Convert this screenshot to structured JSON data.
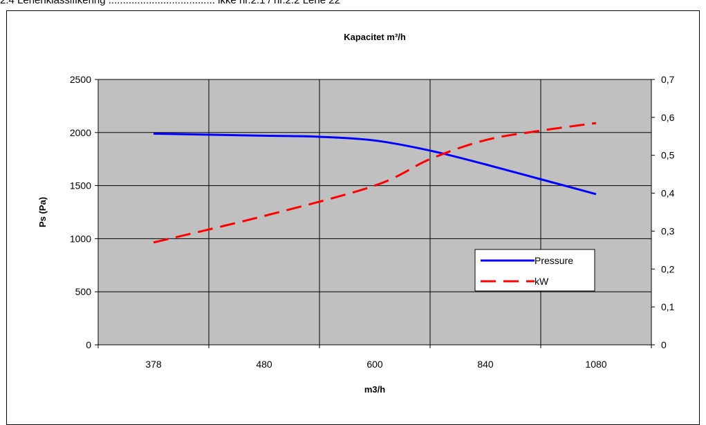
{
  "header": {
    "text": "2.4 Lehenklassifikering ..................................... ikke nr.2.1 / nr.2.2 Lehe 22"
  },
  "chart_data": {
    "type": "line",
    "title": "Kapacitet m³/h",
    "xlabel": "m3/h",
    "ylabel": "Ps (Pa)",
    "y2label": "",
    "categories": [
      "378",
      "480",
      "600",
      "840",
      "1080"
    ],
    "ylim": [
      0,
      2500
    ],
    "yticks": [
      "0",
      "500",
      "1000",
      "1500",
      "2000",
      "2500"
    ],
    "y2lim": [
      0,
      0.7
    ],
    "y2ticks": [
      "0",
      "0,1",
      "0,2",
      "0,3",
      "0,4",
      "0,5",
      "0,6",
      "0,7"
    ],
    "grid": true,
    "legend_position": "right-inside",
    "series": [
      {
        "name": "Pressure",
        "axis": "left",
        "color": "#0000ff",
        "style": "solid",
        "points": [
          [
            378,
            1990
          ],
          [
            480,
            1970
          ],
          [
            540,
            1960
          ],
          [
            600,
            1925
          ],
          [
            720,
            1830
          ],
          [
            840,
            1700
          ],
          [
            960,
            1560
          ],
          [
            1080,
            1420
          ]
        ]
      },
      {
        "name": "kW",
        "axis": "right",
        "color": "#ff0000",
        "style": "dashed",
        "points": [
          [
            378,
            0.27
          ],
          [
            480,
            0.34
          ],
          [
            600,
            0.42
          ],
          [
            720,
            0.49
          ],
          [
            840,
            0.54
          ],
          [
            960,
            0.565
          ],
          [
            1080,
            0.585
          ]
        ]
      }
    ]
  }
}
